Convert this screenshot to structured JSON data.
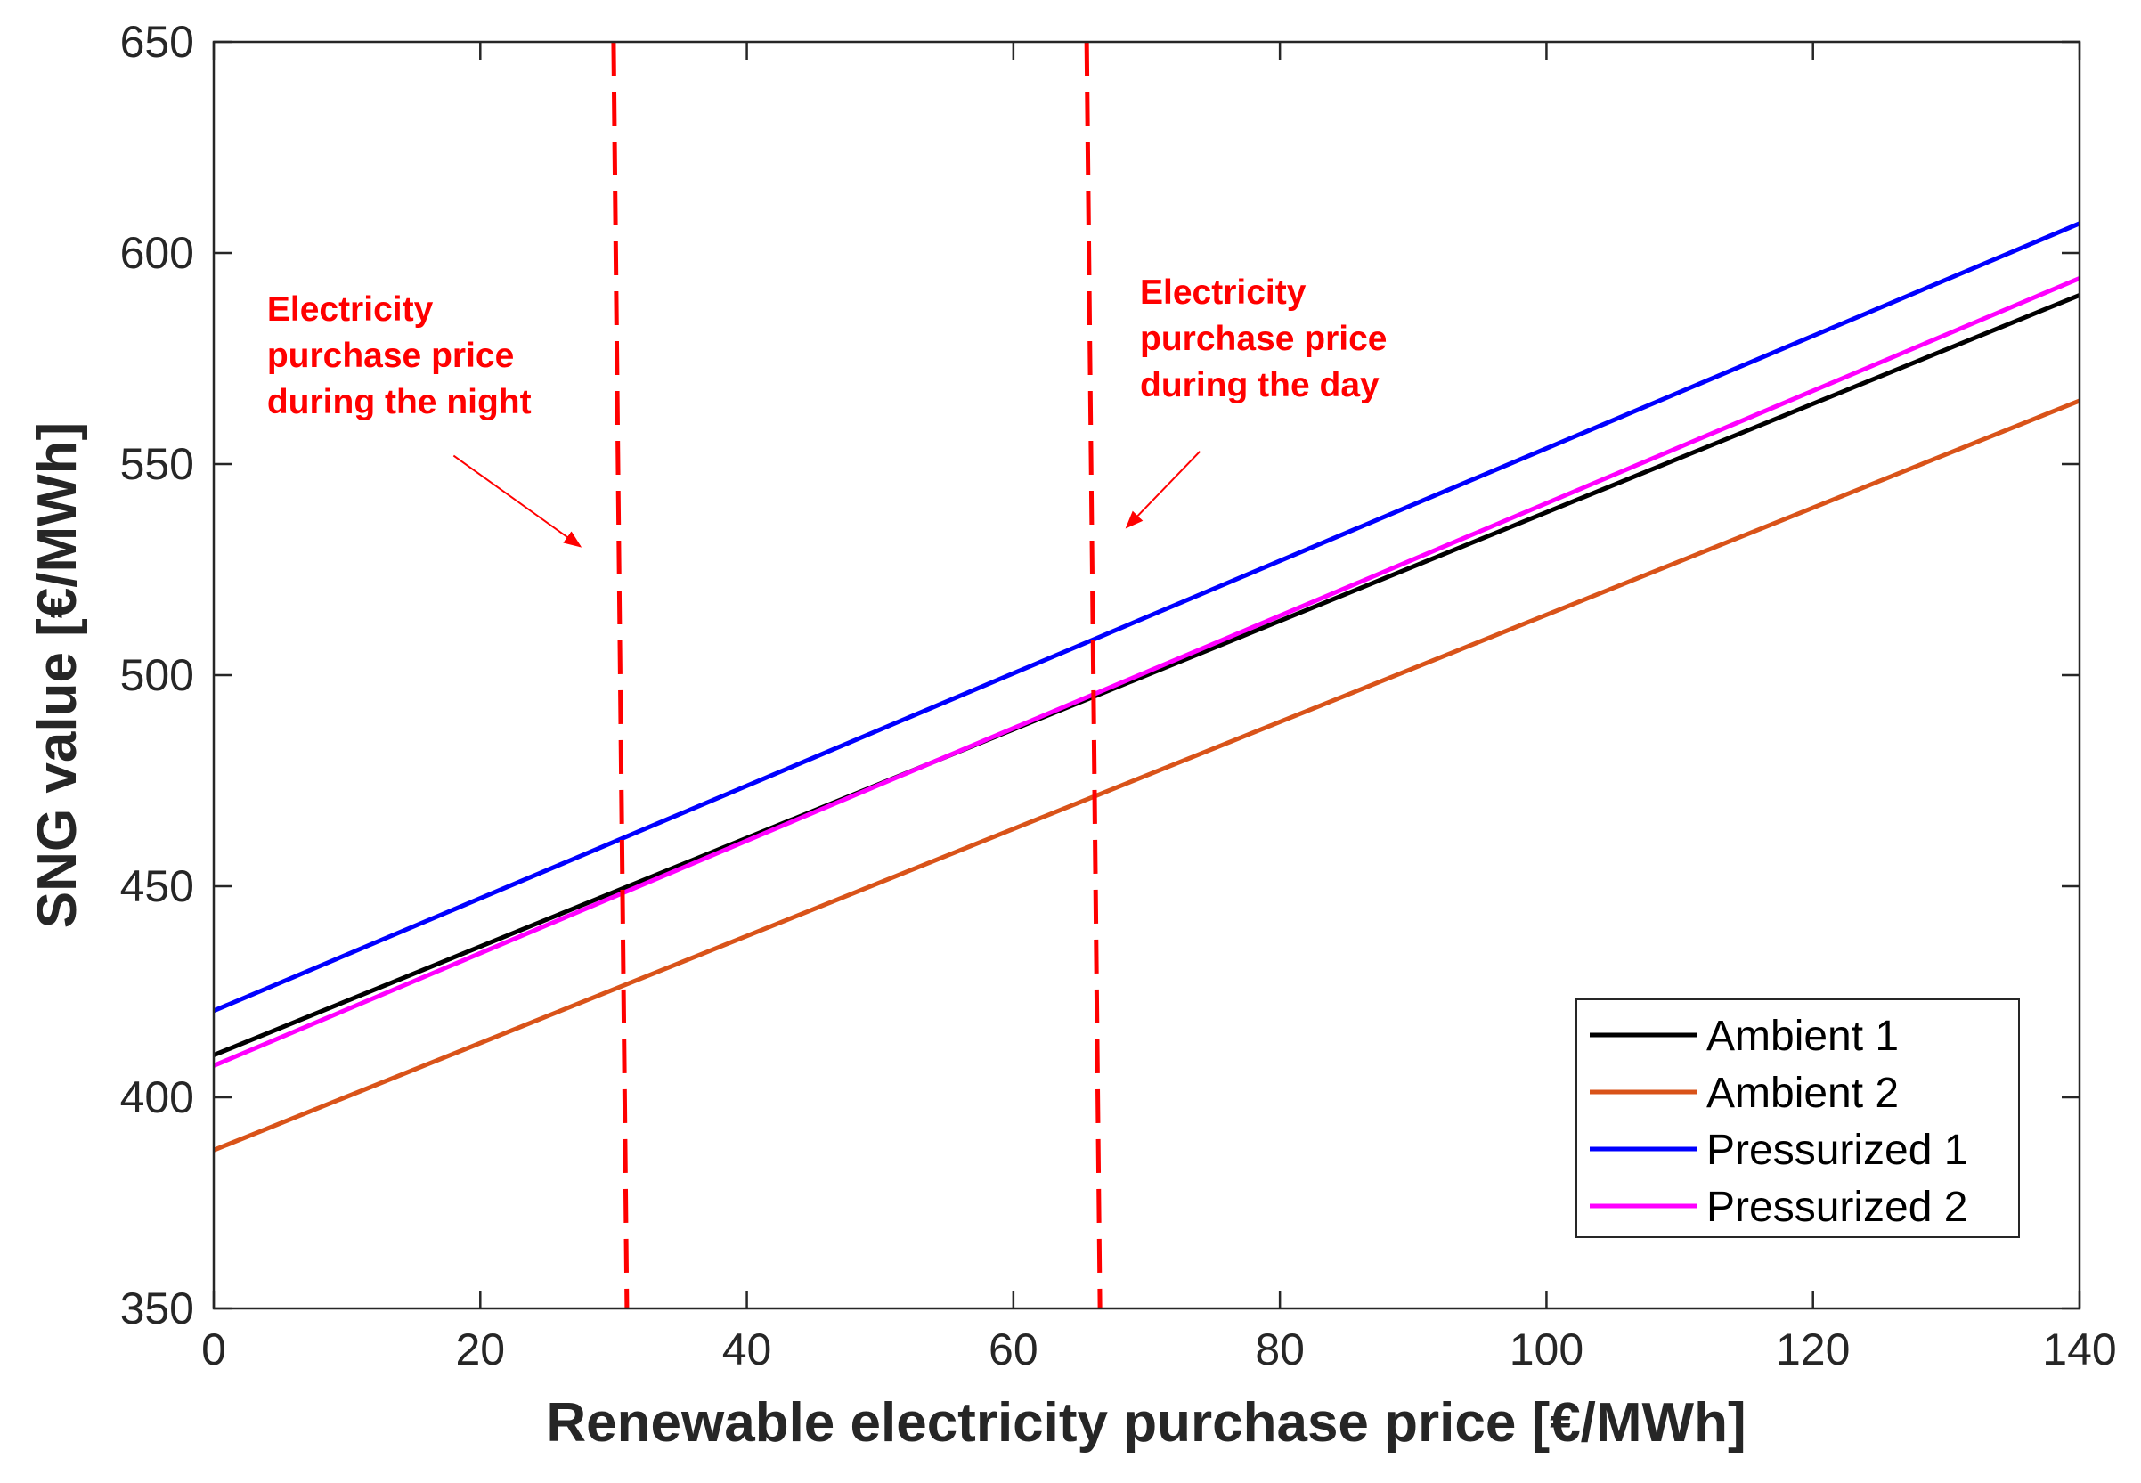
{
  "chart_data": {
    "type": "line",
    "title": "",
    "xlabel": "Renewable electricity purchase price [€/MWh]",
    "ylabel": "SNG value [€/MWh]",
    "xlim": [
      0,
      140
    ],
    "ylim": [
      350,
      650
    ],
    "xticks": [
      0,
      20,
      40,
      60,
      80,
      100,
      120,
      140
    ],
    "yticks": [
      350,
      400,
      450,
      500,
      550,
      600,
      650
    ],
    "grid": false,
    "legend_position": "bottom-right",
    "x": [
      0,
      140
    ],
    "series": [
      {
        "name": "Ambient 1",
        "color": "#000000",
        "values": [
          410,
          590
        ]
      },
      {
        "name": "Ambient 2",
        "color": "#D95319",
        "values": [
          387.5,
          565
        ]
      },
      {
        "name": "Pressurized 1",
        "color": "#0000FF",
        "values": [
          420.5,
          607
        ]
      },
      {
        "name": "Pressurized 2",
        "color": "#FF00FF",
        "values": [
          407.5,
          594
        ]
      }
    ],
    "reference_lines": [
      {
        "name": "night",
        "color": "#FF0000",
        "x_top": 30,
        "x_bottom": 31
      },
      {
        "name": "day",
        "color": "#FF0000",
        "x_top": 65.5,
        "x_bottom": 66.5
      }
    ],
    "annotations": [
      {
        "name": "night",
        "color": "#FF0000",
        "lines": [
          "Electricity",
          "purchase price",
          "during the night"
        ],
        "text_x": 4,
        "text_y": 584,
        "arrow_from": [
          18,
          552
        ],
        "arrow_to": [
          27.5,
          530.5
        ]
      },
      {
        "name": "day",
        "color": "#FF0000",
        "lines": [
          "Electricity",
          "purchase price",
          "during the day"
        ],
        "text_x": 69.5,
        "text_y": 588,
        "arrow_from": [
          74,
          553
        ],
        "arrow_to": [
          68.5,
          535
        ]
      }
    ]
  }
}
